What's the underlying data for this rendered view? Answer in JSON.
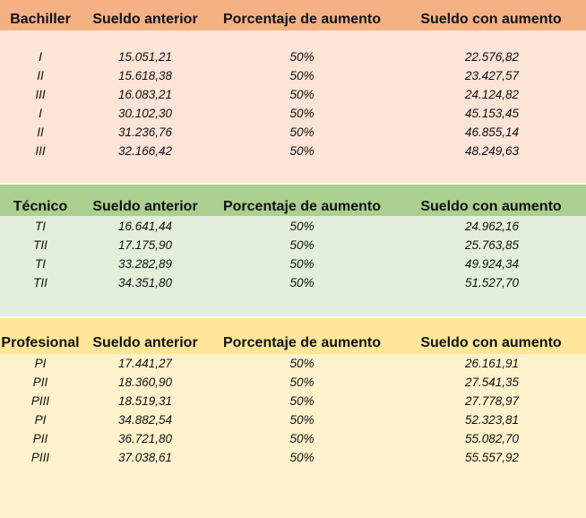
{
  "sections": [
    {
      "name": "Bachiller",
      "headers": [
        "Bachiller",
        "Sueldo anterior",
        "Porcentaje de aumento",
        "Sueldo con aumento"
      ],
      "rows": [
        {
          "level": "I",
          "before": "15.051,21",
          "pct": "50%",
          "after": "22.576,82"
        },
        {
          "level": "II",
          "before": "15.618,38",
          "pct": "50%",
          "after": "23.427,57"
        },
        {
          "level": "III",
          "before": "16.083,21",
          "pct": "50%",
          "after": "24.124,82"
        },
        {
          "level": "I",
          "before": "30.102,30",
          "pct": "50%",
          "after": "45.153,45"
        },
        {
          "level": "II",
          "before": "31.236,76",
          "pct": "50%",
          "after": "46.855,14"
        },
        {
          "level": "III",
          "before": "32.166,42",
          "pct": "50%",
          "after": "48.249,63"
        }
      ]
    },
    {
      "name": "Técnico",
      "headers": [
        "Técnico",
        "Sueldo anterior",
        "Porcentaje de aumento",
        "Sueldo con aumento"
      ],
      "rows": [
        {
          "level": "TI",
          "before": "16.641,44",
          "pct": "50%",
          "after": "24.962,16"
        },
        {
          "level": "TII",
          "before": "17.175,90",
          "pct": "50%",
          "after": "25.763,85"
        },
        {
          "level": "TI",
          "before": "33.282,89",
          "pct": "50%",
          "after": "49.924,34"
        },
        {
          "level": "TII",
          "before": "34.351,80",
          "pct": "50%",
          "after": "51.527,70"
        }
      ]
    },
    {
      "name": "Profesional",
      "headers": [
        "Profesional",
        "Sueldo anterior",
        "Porcentaje de aumento",
        "Sueldo con aumento"
      ],
      "rows": [
        {
          "level": "PI",
          "before": "17.441,27",
          "pct": "50%",
          "after": "26.161,91"
        },
        {
          "level": "PII",
          "before": "18.360,90",
          "pct": "50%",
          "after": "27.541,35"
        },
        {
          "level": "PIII",
          "before": "18.519,31",
          "pct": "50%",
          "after": "27.778,97"
        },
        {
          "level": "PI",
          "before": "34.882,54",
          "pct": "50%",
          "after": "52.323,81"
        },
        {
          "level": "PII",
          "before": "36.721,80",
          "pct": "50%",
          "after": "55.082,70"
        },
        {
          "level": "PIII",
          "before": "37.038,61",
          "pct": "50%",
          "after": "55.557,92"
        }
      ]
    }
  ],
  "colors": {
    "bachiller_header": "#f4b183",
    "bachiller_body": "#fce4d6",
    "tecnico_header": "#a9d08e",
    "tecnico_body": "#e2efda",
    "profesional_header": "#ffe699",
    "profesional_body": "#fff2cc"
  }
}
